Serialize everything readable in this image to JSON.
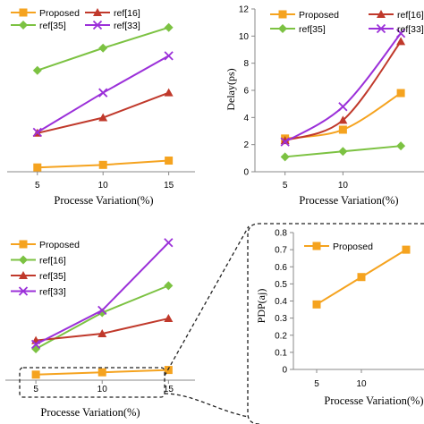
{
  "chart_data": [
    {
      "type": "line",
      "x": [
        5,
        10,
        15
      ],
      "series": [
        {
          "name": "Proposed",
          "values": [
            0.5,
            0.8,
            1.3
          ],
          "color": "#f5a31f",
          "marker": "square"
        },
        {
          "name": "ref[16]",
          "values": [
            4.5,
            6.3,
            9.2
          ],
          "color": "#c0392b",
          "marker": "triangle"
        },
        {
          "name": "ref[35]",
          "values": [
            11.8,
            14.4,
            16.8
          ],
          "color": "#7cc242",
          "marker": "diamond"
        },
        {
          "name": "ref[33]",
          "values": [
            4.6,
            9.2,
            13.5
          ],
          "color": "#9b30d9",
          "marker": "x"
        }
      ],
      "legend": "top",
      "xtick_labels": [
        "5",
        "10",
        "15"
      ],
      "xlabel": "Processe Variation(%)",
      "ylabel": "",
      "xlim": [
        2.7,
        17.0
      ],
      "ylim": [
        0,
        20
      ]
    },
    {
      "type": "line",
      "x": [
        5,
        10,
        15
      ],
      "series": [
        {
          "name": "Proposed",
          "values": [
            2.45,
            3.1,
            5.8
          ],
          "color": "#f5a31f",
          "marker": "square"
        },
        {
          "name": "ref[16]",
          "values": [
            2.3,
            3.8,
            9.6
          ],
          "color": "#c0392b",
          "marker": "triangle"
        },
        {
          "name": "ref[35]",
          "values": [
            1.1,
            1.5,
            1.9
          ],
          "color": "#7cc242",
          "marker": "diamond"
        },
        {
          "name": "ref[33]",
          "values": [
            2.2,
            4.8,
            10.2
          ],
          "color": "#9b30d9",
          "marker": "x"
        }
      ],
      "legend": "top",
      "ytick_labels": [
        "0",
        "2",
        "4",
        "6",
        "8",
        "10",
        "12"
      ],
      "xtick_labels": [
        "5",
        "10"
      ],
      "xlabel": "Processe Variation(%)",
      "ylabel": "Delay(ps)",
      "xlim": [
        2.4,
        17.0
      ],
      "ylim": [
        0,
        12
      ]
    },
    {
      "type": "line",
      "x": [
        5,
        10,
        15
      ],
      "series": [
        {
          "name": "Proposed",
          "values": [
            0.38,
            0.54,
            0.7
          ],
          "color": "#f5a31f",
          "marker": "square"
        },
        {
          "name": "ref[16]",
          "values": [
            2.15,
            4.63,
            6.48
          ],
          "color": "#7cc242",
          "marker": "diamond"
        },
        {
          "name": "ref[35]",
          "values": [
            2.72,
            3.19,
            4.23
          ],
          "color": "#c0392b",
          "marker": "triangle"
        },
        {
          "name": "ref[33]",
          "values": [
            2.46,
            4.79,
            9.43
          ],
          "color": "#9b30d9",
          "marker": "x"
        }
      ],
      "legend": "top-left",
      "xtick_labels": [
        "5",
        "10",
        "15"
      ],
      "xlabel": "Processe Variation(%)",
      "ylabel": "",
      "xlim": [
        2.7,
        17.0
      ],
      "ylim": [
        0,
        10
      ]
    },
    {
      "type": "line",
      "x": [
        5,
        10,
        15
      ],
      "series": [
        {
          "name": "Proposed",
          "values": [
            0.38,
            0.54,
            0.7
          ],
          "color": "#f5a31f",
          "marker": "square"
        }
      ],
      "legend": "top-left",
      "ytick_labels": [
        "0",
        "0.1",
        "0.2",
        "0.3",
        "0.4",
        "0.5",
        "0.6",
        "0.7",
        "0.8"
      ],
      "xtick_labels": [
        "5",
        "10"
      ],
      "xlabel": "Processe Variation(%)",
      "ylabel": "PDP(aj)",
      "xlim": [
        2.4,
        17.0
      ],
      "ylim": [
        0,
        0.8
      ]
    }
  ]
}
